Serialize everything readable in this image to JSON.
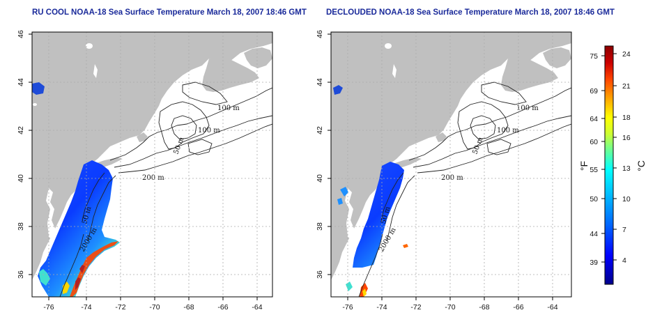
{
  "panels": [
    {
      "id": "left",
      "title": "RU COOL NOAA-18 Sea Surface Temperature March 18, 2007 18:46 GMT",
      "contour_labels": [
        "100 m",
        "100 m",
        "50 m",
        "200 m",
        "50 m",
        "2000 m"
      ]
    },
    {
      "id": "right",
      "title": "DECLOUDED NOAA-18 Sea Surface Temperature March 18, 2007 18:46 GMT",
      "contour_labels": [
        "100 m",
        "100 m",
        "50 m",
        "200 m",
        "50 m",
        "2000 m"
      ]
    }
  ],
  "axes": {
    "lon_ticks": [
      "-76",
      "-74",
      "-72",
      "-70",
      "-68",
      "-66",
      "-64"
    ],
    "lat_ticks": [
      "36",
      "38",
      "40",
      "42",
      "44",
      "46"
    ],
    "lon_range": [
      -77.2,
      -62.8
    ],
    "lat_range": [
      35,
      46
    ],
    "grid": "dotted"
  },
  "colorbar": {
    "fahrenheit_ticks": [
      "75",
      "69",
      "64",
      "60",
      "55",
      "50",
      "44",
      "39"
    ],
    "celsius_ticks": [
      "24",
      "21",
      "18",
      "16",
      "13",
      "10",
      "7",
      "4"
    ],
    "fahrenheit_unit": "°F",
    "celsius_unit": "°C",
    "colors": [
      "#00008b",
      "#0000ff",
      "#0066ff",
      "#00bfff",
      "#00ffff",
      "#66ff99",
      "#ccff33",
      "#ffff00",
      "#ffa500",
      "#ff4500",
      "#cc0000",
      "#8b0000"
    ]
  },
  "colors": {
    "land": "#c0c0c0",
    "ocean": "#ffffff",
    "title": "#1a2a9a",
    "grid": "#aaaaaa"
  }
}
